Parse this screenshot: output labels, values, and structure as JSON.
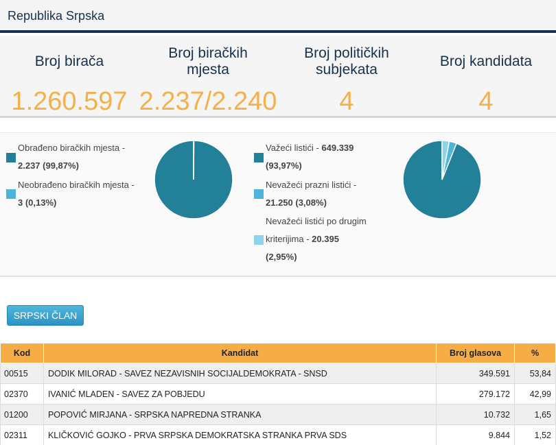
{
  "header": {
    "title": "Republika Srpska"
  },
  "stats": [
    {
      "label": "Broj birača",
      "value": "1.260.597"
    },
    {
      "label": "Broj biračkih mjesta",
      "value": "2.237/2.240"
    },
    {
      "label": "Broj političkih subjekata",
      "value": "4"
    },
    {
      "label": "Broj kandidata",
      "value": "4"
    }
  ],
  "polling_chart": {
    "legend": [
      {
        "label": "Obrađeno biračkih mjesta -",
        "value": "2.237 (99,87%)",
        "color": "#238099"
      },
      {
        "label": "Neobrađeno biračkih mjesta -",
        "value": "3 (0,13%)",
        "color": "#4db5d9"
      }
    ],
    "slices": [
      99.87,
      0.13
    ],
    "colors": [
      "#238099",
      "#4db5d9"
    ]
  },
  "ballot_chart": {
    "legend": [
      {
        "label": "Važeći listići - ",
        "value": "649.339",
        "pct": "(93,97%)",
        "color": "#238099"
      },
      {
        "label": "Nevažeći prazni listići -",
        "value": "21.250 (3,08%)",
        "color": "#4db5d9"
      },
      {
        "label": "Nevažeći listići po drugim",
        "label2": "kriterijima - ",
        "value": "20.395",
        "pct": "(2,95%)",
        "color": "#8fd3ea"
      }
    ],
    "slices": [
      93.97,
      3.08,
      2.95
    ],
    "colors": [
      "#238099",
      "#4db5d9",
      "#8fd3ea"
    ]
  },
  "button": {
    "label": "SRPSKI ČLAN"
  },
  "table": {
    "headers": [
      "Kod",
      "Kandidat",
      "Broj glasova",
      "%"
    ],
    "rows": [
      {
        "code": "00515",
        "name": "DODIK MILORAD - SAVEZ NEZAVISNIH SOCIJALDEMOKRATA - SNSD",
        "votes": "349.591",
        "pct": "53,84"
      },
      {
        "code": "02370",
        "name": "IVANIĆ MLADEN - SAVEZ ZA POBJEDU",
        "votes": "279.172",
        "pct": "42,99"
      },
      {
        "code": "01200",
        "name": "POPOVIĆ MIRJANA - SRPSKA NAPREDNA STRANKA",
        "votes": "10.732",
        "pct": "1,65"
      },
      {
        "code": "02311",
        "name": "KLIČKOVIĆ GOJKO - PRVA SRPSKA DEMOKRATSKA STRANKA PRVA SDS",
        "votes": "9.844",
        "pct": "1,52"
      }
    ]
  }
}
